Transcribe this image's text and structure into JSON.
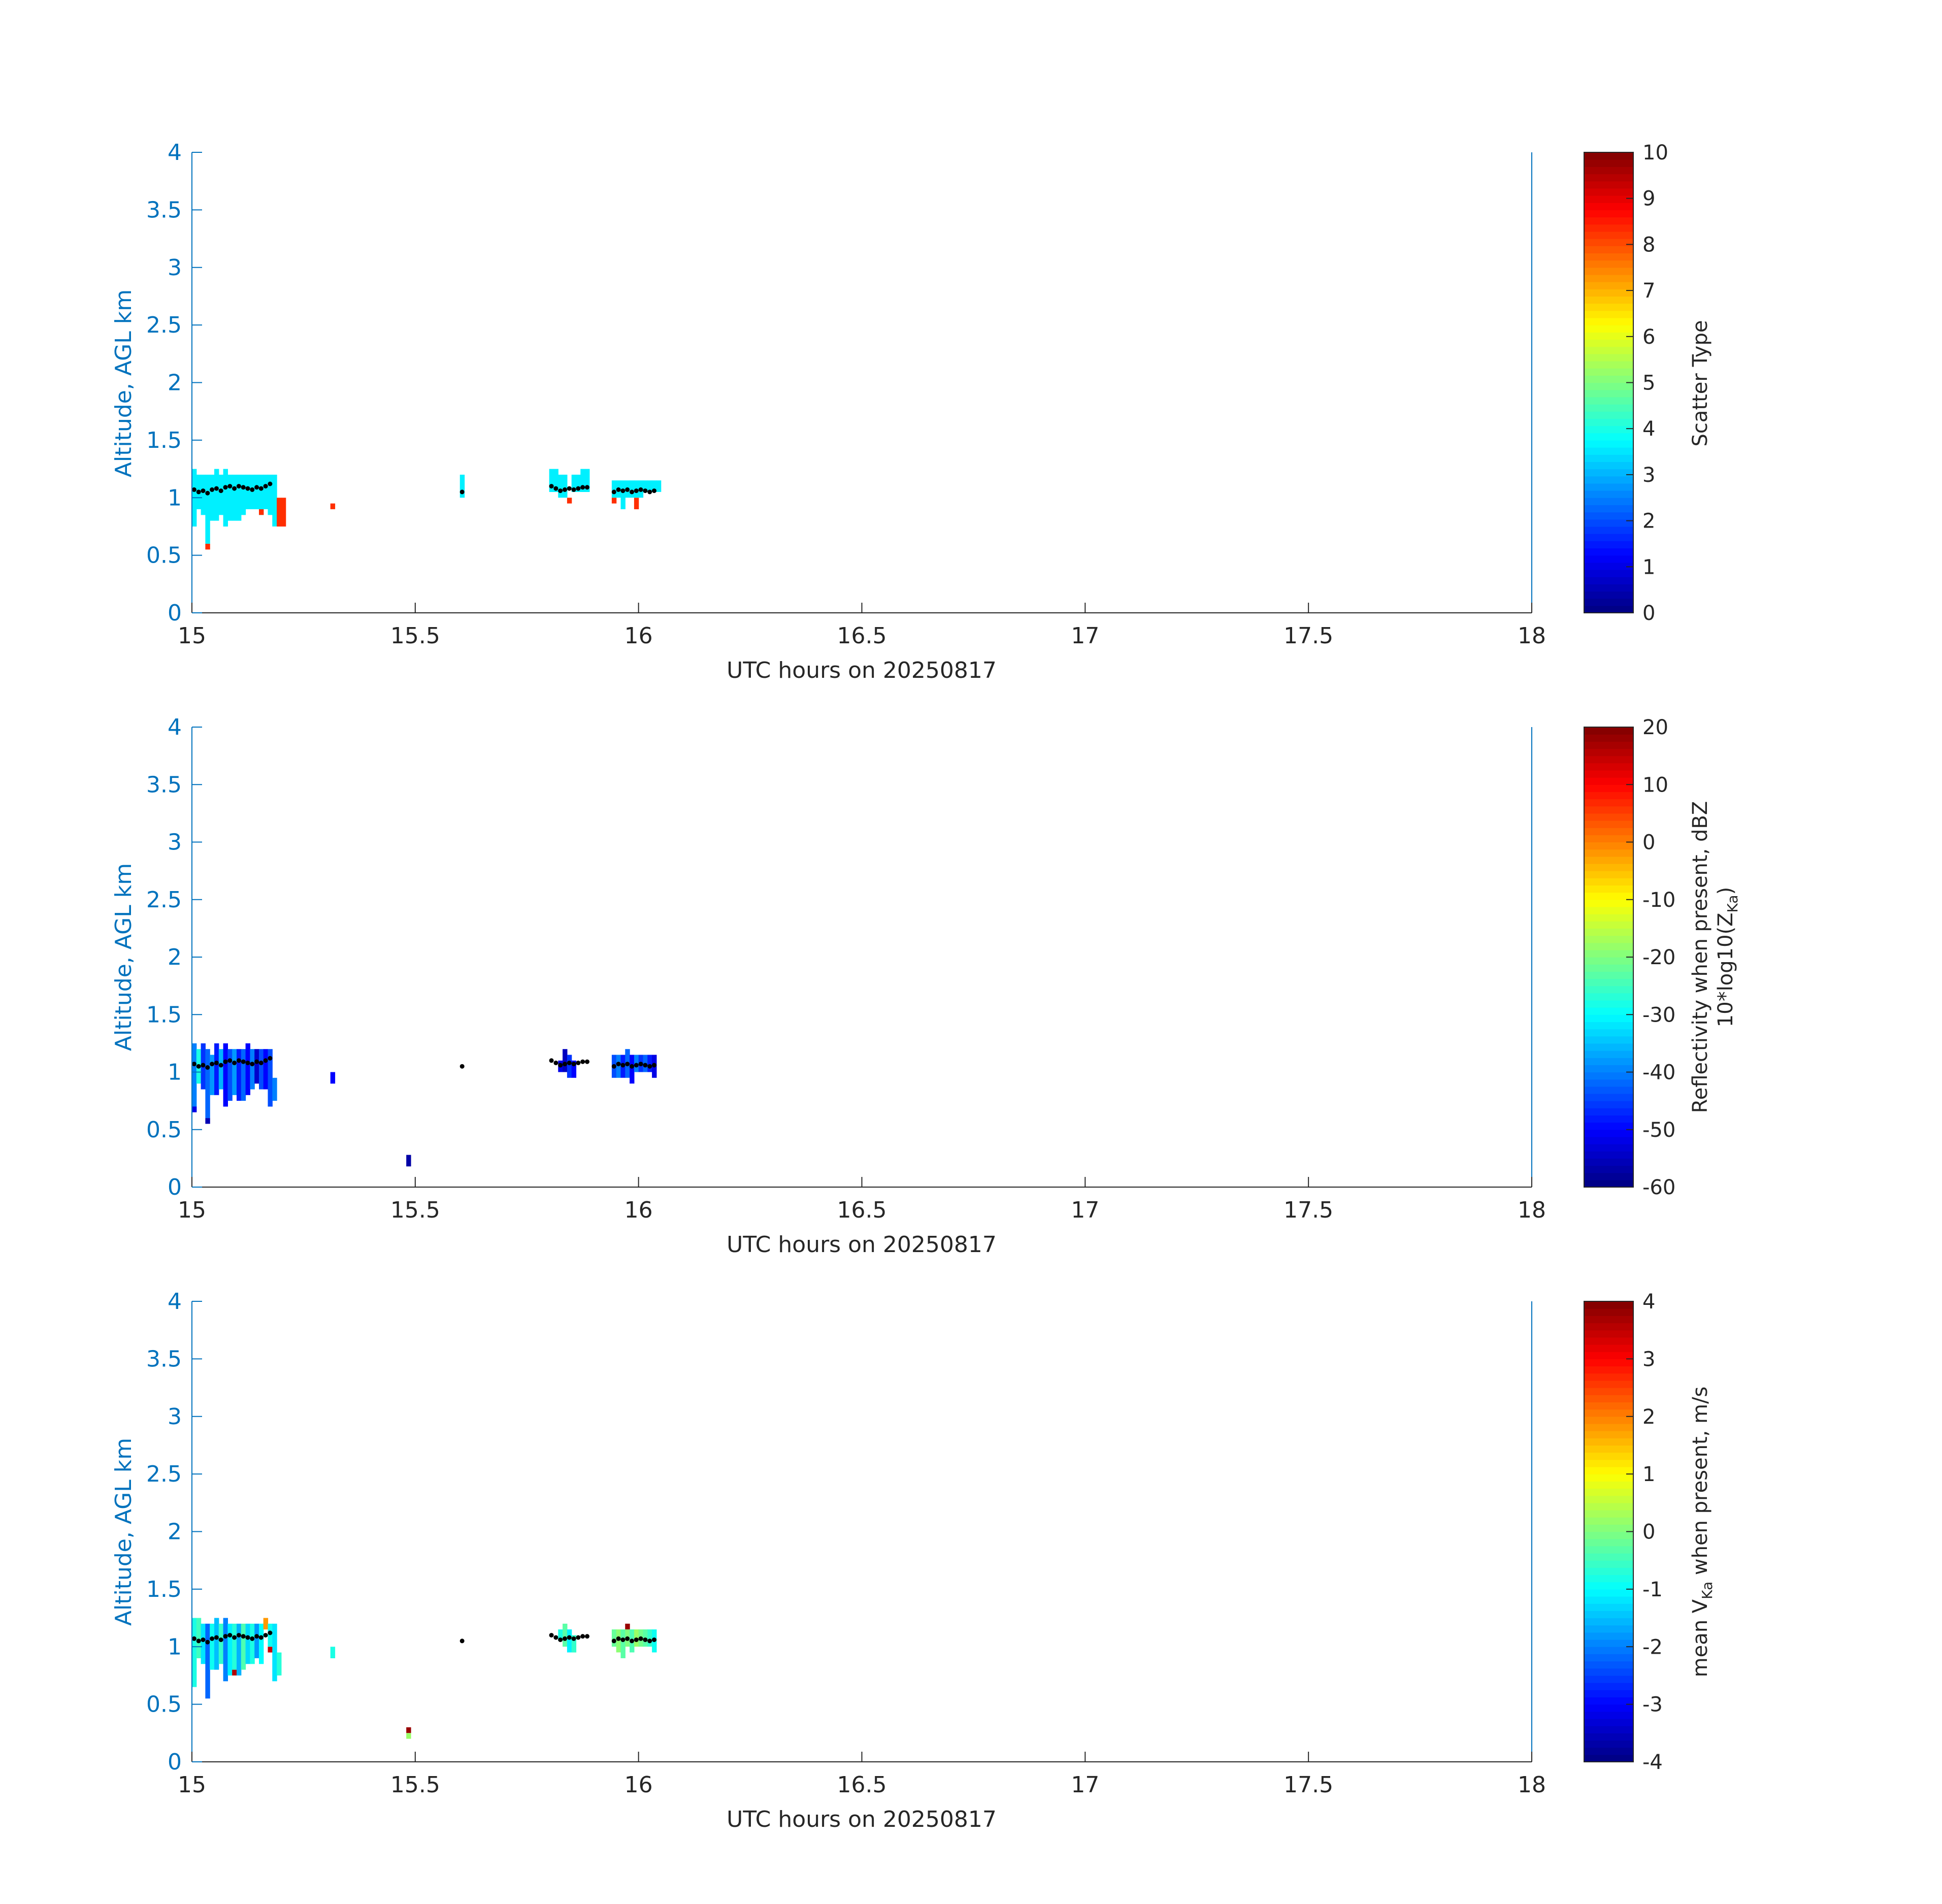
{
  "colors": {
    "yaxis": "#0072BD",
    "xaxis": "#262626",
    "box": "#0072BD",
    "cloud_base_marker": "#000000",
    "colormap": "jet"
  },
  "chart_data": [
    {
      "type": "heatmap",
      "title": "",
      "xlabel": "UTC hours on 20250817",
      "ylabel": "Altitude, AGL km",
      "xlim": [
        15,
        18
      ],
      "ylim": [
        0,
        4
      ],
      "xticks": [
        15,
        15.5,
        16,
        16.5,
        17,
        17.5,
        18
      ],
      "yticks": [
        0,
        0.5,
        1,
        1.5,
        2,
        2.5,
        3,
        3.5,
        4
      ],
      "colorbar": {
        "label_lines": [
          "Scatter Type"
        ],
        "clim": [
          0,
          10
        ],
        "ticks": [
          0,
          1,
          2,
          3,
          4,
          5,
          6,
          7,
          8,
          9,
          10
        ]
      },
      "cells": [
        {
          "x": 15.0,
          "y0": 0.75,
          "y1": 1.25,
          "value": 3.6
        },
        {
          "x": 15.01,
          "y0": 0.9,
          "y1": 1.2,
          "value": 3.6
        },
        {
          "x": 15.02,
          "y0": 0.85,
          "y1": 1.2,
          "value": 3.6
        },
        {
          "x": 15.03,
          "y0": 0.6,
          "y1": 1.2,
          "value": 3.6
        },
        {
          "x": 15.03,
          "y0": 0.55,
          "y1": 0.6,
          "value": 8.3
        },
        {
          "x": 15.04,
          "y0": 0.8,
          "y1": 1.2,
          "value": 3.6
        },
        {
          "x": 15.05,
          "y0": 0.8,
          "y1": 1.25,
          "value": 3.6
        },
        {
          "x": 15.06,
          "y0": 0.85,
          "y1": 1.2,
          "value": 3.6
        },
        {
          "x": 15.07,
          "y0": 0.75,
          "y1": 1.25,
          "value": 3.6
        },
        {
          "x": 15.08,
          "y0": 0.8,
          "y1": 1.2,
          "value": 3.6
        },
        {
          "x": 15.09,
          "y0": 0.8,
          "y1": 1.2,
          "value": 3.6
        },
        {
          "x": 15.1,
          "y0": 0.8,
          "y1": 1.2,
          "value": 3.6
        },
        {
          "x": 15.11,
          "y0": 0.85,
          "y1": 1.2,
          "value": 3.6
        },
        {
          "x": 15.12,
          "y0": 0.9,
          "y1": 1.2,
          "value": 3.6
        },
        {
          "x": 15.13,
          "y0": 0.9,
          "y1": 1.2,
          "value": 3.6
        },
        {
          "x": 15.14,
          "y0": 0.9,
          "y1": 1.2,
          "value": 3.6
        },
        {
          "x": 15.15,
          "y0": 0.85,
          "y1": 1.2,
          "value": 3.6
        },
        {
          "x": 15.15,
          "y0": 0.85,
          "y1": 0.9,
          "value": 8.3
        },
        {
          "x": 15.16,
          "y0": 0.9,
          "y1": 1.2,
          "value": 3.6
        },
        {
          "x": 15.17,
          "y0": 0.85,
          "y1": 1.2,
          "value": 3.6
        },
        {
          "x": 15.18,
          "y0": 0.75,
          "y1": 1.2,
          "value": 3.6
        },
        {
          "x": 15.19,
          "y0": 0.75,
          "y1": 1.0,
          "value": 8.3
        },
        {
          "x": 15.2,
          "y0": 0.75,
          "y1": 1.0,
          "value": 8.3
        },
        {
          "x": 15.31,
          "y0": 0.9,
          "y1": 0.95,
          "value": 8.3
        },
        {
          "x": 15.6,
          "y0": 1.0,
          "y1": 1.2,
          "value": 3.6
        },
        {
          "x": 15.8,
          "y0": 1.05,
          "y1": 1.25,
          "value": 3.6
        },
        {
          "x": 15.81,
          "y0": 1.05,
          "y1": 1.25,
          "value": 3.6
        },
        {
          "x": 15.82,
          "y0": 1.0,
          "y1": 1.2,
          "value": 3.6
        },
        {
          "x": 15.83,
          "y0": 1.0,
          "y1": 1.2,
          "value": 3.6
        },
        {
          "x": 15.84,
          "y0": 0.95,
          "y1": 1.0,
          "value": 8.3
        },
        {
          "x": 15.85,
          "y0": 1.05,
          "y1": 1.2,
          "value": 3.6
        },
        {
          "x": 15.86,
          "y0": 1.05,
          "y1": 1.2,
          "value": 3.6
        },
        {
          "x": 15.87,
          "y0": 1.05,
          "y1": 1.25,
          "value": 3.6
        },
        {
          "x": 15.88,
          "y0": 1.05,
          "y1": 1.25,
          "value": 3.6
        },
        {
          "x": 15.94,
          "y0": 1.0,
          "y1": 1.15,
          "value": 3.6
        },
        {
          "x": 15.94,
          "y0": 0.95,
          "y1": 1.0,
          "value": 8.3
        },
        {
          "x": 15.95,
          "y0": 1.0,
          "y1": 1.15,
          "value": 3.6
        },
        {
          "x": 15.96,
          "y0": 0.9,
          "y1": 1.15,
          "value": 3.6
        },
        {
          "x": 15.97,
          "y0": 1.0,
          "y1": 1.15,
          "value": 3.6
        },
        {
          "x": 15.98,
          "y0": 1.0,
          "y1": 1.15,
          "value": 3.6
        },
        {
          "x": 15.99,
          "y0": 0.9,
          "y1": 1.0,
          "value": 8.3
        },
        {
          "x": 15.99,
          "y0": 1.0,
          "y1": 1.15,
          "value": 3.6
        },
        {
          "x": 16.0,
          "y0": 1.0,
          "y1": 1.15,
          "value": 3.6
        },
        {
          "x": 16.01,
          "y0": 1.05,
          "y1": 1.15,
          "value": 3.6
        },
        {
          "x": 16.02,
          "y0": 1.05,
          "y1": 1.15,
          "value": 3.6
        },
        {
          "x": 16.03,
          "y0": 1.05,
          "y1": 1.15,
          "value": 3.6
        },
        {
          "x": 16.04,
          "y0": 1.05,
          "y1": 1.15,
          "value": 3.6
        }
      ]
    },
    {
      "type": "heatmap",
      "title": "",
      "xlabel": "UTC hours on 20250817",
      "ylabel": "Altitude, AGL km",
      "xlim": [
        15,
        18
      ],
      "ylim": [
        0,
        4
      ],
      "xticks": [
        15,
        15.5,
        16,
        16.5,
        17,
        17.5,
        18
      ],
      "yticks": [
        0,
        0.5,
        1,
        1.5,
        2,
        2.5,
        3,
        3.5,
        4
      ],
      "colorbar": {
        "label_lines": [
          "Reflectivity when present, dBZ",
          "10*log10(Z_Ka)"
        ],
        "clim": [
          -60,
          20
        ],
        "ticks": [
          -60,
          -50,
          -40,
          -30,
          -20,
          -10,
          0,
          10,
          20
        ]
      },
      "cells": [
        {
          "x": 15.0,
          "y0": 0.7,
          "y1": 1.25,
          "value": -40
        },
        {
          "x": 15.0,
          "y0": 0.65,
          "y1": 0.7,
          "value": -52
        },
        {
          "x": 15.01,
          "y0": 0.9,
          "y1": 1.2,
          "value": -28
        },
        {
          "x": 15.02,
          "y0": 0.85,
          "y1": 1.25,
          "value": -46
        },
        {
          "x": 15.03,
          "y0": 0.6,
          "y1": 1.2,
          "value": -42
        },
        {
          "x": 15.03,
          "y0": 0.55,
          "y1": 0.6,
          "value": -56
        },
        {
          "x": 15.04,
          "y0": 0.8,
          "y1": 1.15,
          "value": -38
        },
        {
          "x": 15.05,
          "y0": 0.8,
          "y1": 1.25,
          "value": -48
        },
        {
          "x": 15.06,
          "y0": 0.85,
          "y1": 1.2,
          "value": -36
        },
        {
          "x": 15.07,
          "y0": 0.7,
          "y1": 1.25,
          "value": -50
        },
        {
          "x": 15.08,
          "y0": 0.75,
          "y1": 1.2,
          "value": -44
        },
        {
          "x": 15.09,
          "y0": 0.8,
          "y1": 1.2,
          "value": -38
        },
        {
          "x": 15.1,
          "y0": 0.75,
          "y1": 1.2,
          "value": -48
        },
        {
          "x": 15.11,
          "y0": 0.75,
          "y1": 1.2,
          "value": -42
        },
        {
          "x": 15.12,
          "y0": 0.8,
          "y1": 1.25,
          "value": -50
        },
        {
          "x": 15.13,
          "y0": 0.85,
          "y1": 1.2,
          "value": -40
        },
        {
          "x": 15.14,
          "y0": 0.9,
          "y1": 1.2,
          "value": -54
        },
        {
          "x": 15.15,
          "y0": 0.85,
          "y1": 1.2,
          "value": -44
        },
        {
          "x": 15.16,
          "y0": 0.85,
          "y1": 1.2,
          "value": -50
        },
        {
          "x": 15.17,
          "y0": 0.7,
          "y1": 1.2,
          "value": -44
        },
        {
          "x": 15.18,
          "y0": 0.75,
          "y1": 0.95,
          "value": -40
        },
        {
          "x": 15.31,
          "y0": 0.9,
          "y1": 1.0,
          "value": -50
        },
        {
          "x": 15.48,
          "y0": 0.18,
          "y1": 0.28,
          "value": -57
        },
        {
          "x": 15.82,
          "y0": 1.0,
          "y1": 1.1,
          "value": -52
        },
        {
          "x": 15.83,
          "y0": 1.0,
          "y1": 1.2,
          "value": -55
        },
        {
          "x": 15.84,
          "y0": 0.95,
          "y1": 1.15,
          "value": -46
        },
        {
          "x": 15.85,
          "y0": 0.95,
          "y1": 1.1,
          "value": -50
        },
        {
          "x": 15.94,
          "y0": 0.95,
          "y1": 1.15,
          "value": -44
        },
        {
          "x": 15.95,
          "y0": 0.95,
          "y1": 1.15,
          "value": -40
        },
        {
          "x": 15.96,
          "y0": 0.95,
          "y1": 1.15,
          "value": -48
        },
        {
          "x": 15.97,
          "y0": 0.95,
          "y1": 1.2,
          "value": -42
        },
        {
          "x": 15.98,
          "y0": 0.9,
          "y1": 1.15,
          "value": -50
        },
        {
          "x": 15.99,
          "y0": 1.0,
          "y1": 1.15,
          "value": -40
        },
        {
          "x": 16.0,
          "y0": 1.0,
          "y1": 1.15,
          "value": -46
        },
        {
          "x": 16.01,
          "y0": 1.0,
          "y1": 1.15,
          "value": -42
        },
        {
          "x": 16.02,
          "y0": 1.0,
          "y1": 1.15,
          "value": -48
        },
        {
          "x": 16.03,
          "y0": 0.95,
          "y1": 1.15,
          "value": -52
        }
      ]
    },
    {
      "type": "heatmap",
      "title": "",
      "xlabel": "UTC hours on 20250817",
      "ylabel": "Altitude, AGL km",
      "xlim": [
        15,
        18
      ],
      "ylim": [
        0,
        4
      ],
      "xticks": [
        15,
        15.5,
        16,
        16.5,
        17,
        17.5,
        18
      ],
      "yticks": [
        0,
        0.5,
        1,
        1.5,
        2,
        2.5,
        3,
        3.5,
        4
      ],
      "colorbar": {
        "label_lines": [
          "mean V_Ka when present, m/s"
        ],
        "clim": [
          -4,
          4
        ],
        "ticks": [
          -4,
          -3,
          -2,
          -1,
          0,
          1,
          2,
          3,
          4
        ]
      },
      "cells": [
        {
          "x": 15.0,
          "y0": 0.65,
          "y1": 1.25,
          "value": -0.8
        },
        {
          "x": 15.01,
          "y0": 0.9,
          "y1": 1.25,
          "value": -0.5
        },
        {
          "x": 15.02,
          "y0": 0.85,
          "y1": 1.2,
          "value": -1.2
        },
        {
          "x": 15.03,
          "y0": 0.55,
          "y1": 1.2,
          "value": -2.2
        },
        {
          "x": 15.04,
          "y0": 0.8,
          "y1": 1.2,
          "value": -0.9
        },
        {
          "x": 15.05,
          "y0": 0.8,
          "y1": 1.25,
          "value": -1.5
        },
        {
          "x": 15.06,
          "y0": 0.85,
          "y1": 1.2,
          "value": -0.6
        },
        {
          "x": 15.07,
          "y0": 0.7,
          "y1": 1.25,
          "value": -2.0
        },
        {
          "x": 15.08,
          "y0": 0.75,
          "y1": 1.2,
          "value": -1.1
        },
        {
          "x": 15.09,
          "y0": 0.75,
          "y1": 0.8,
          "value": 3.6
        },
        {
          "x": 15.09,
          "y0": 0.8,
          "y1": 1.2,
          "value": -0.7
        },
        {
          "x": 15.1,
          "y0": 0.75,
          "y1": 1.2,
          "value": -1.6
        },
        {
          "x": 15.11,
          "y0": 0.8,
          "y1": 1.2,
          "value": -0.4
        },
        {
          "x": 15.12,
          "y0": 0.85,
          "y1": 1.2,
          "value": -1.3
        },
        {
          "x": 15.13,
          "y0": 0.85,
          "y1": 1.2,
          "value": -0.8
        },
        {
          "x": 15.14,
          "y0": 0.9,
          "y1": 1.2,
          "value": -1.8
        },
        {
          "x": 15.15,
          "y0": 0.85,
          "y1": 1.2,
          "value": -1.0
        },
        {
          "x": 15.16,
          "y0": 1.15,
          "y1": 1.25,
          "value": 1.8
        },
        {
          "x": 15.17,
          "y0": 0.95,
          "y1": 1.0,
          "value": 3.4
        },
        {
          "x": 15.17,
          "y0": 1.0,
          "y1": 1.2,
          "value": -0.9
        },
        {
          "x": 15.18,
          "y0": 0.7,
          "y1": 1.2,
          "value": -1.2
        },
        {
          "x": 15.19,
          "y0": 0.75,
          "y1": 0.95,
          "value": -0.7
        },
        {
          "x": 15.31,
          "y0": 0.9,
          "y1": 1.0,
          "value": -0.8
        },
        {
          "x": 15.48,
          "y0": 0.25,
          "y1": 0.3,
          "value": 3.8
        },
        {
          "x": 15.48,
          "y0": 0.2,
          "y1": 0.25,
          "value": 0.2
        },
        {
          "x": 15.82,
          "y0": 1.05,
          "y1": 1.15,
          "value": -0.8
        },
        {
          "x": 15.83,
          "y0": 1.0,
          "y1": 1.2,
          "value": -0.3
        },
        {
          "x": 15.84,
          "y0": 0.95,
          "y1": 1.15,
          "value": -1.1
        },
        {
          "x": 15.85,
          "y0": 0.95,
          "y1": 1.1,
          "value": -0.6
        },
        {
          "x": 15.94,
          "y0": 1.0,
          "y1": 1.15,
          "value": -0.2
        },
        {
          "x": 15.95,
          "y0": 0.95,
          "y1": 1.15,
          "value": 0.1
        },
        {
          "x": 15.96,
          "y0": 0.9,
          "y1": 1.15,
          "value": -0.3
        },
        {
          "x": 15.97,
          "y0": 1.0,
          "y1": 1.15,
          "value": 0.0
        },
        {
          "x": 15.97,
          "y0": 1.15,
          "y1": 1.2,
          "value": 3.8
        },
        {
          "x": 15.98,
          "y0": 0.95,
          "y1": 1.15,
          "value": -0.4
        },
        {
          "x": 15.99,
          "y0": 1.0,
          "y1": 1.15,
          "value": 0.2
        },
        {
          "x": 16.0,
          "y0": 1.0,
          "y1": 1.15,
          "value": -0.1
        },
        {
          "x": 16.01,
          "y0": 1.0,
          "y1": 1.15,
          "value": -0.3
        },
        {
          "x": 16.02,
          "y0": 1.0,
          "y1": 1.15,
          "value": -0.6
        },
        {
          "x": 16.03,
          "y0": 0.95,
          "y1": 1.15,
          "value": -0.9
        }
      ]
    }
  ],
  "cloud_base": {
    "x": [
      15.005,
      15.015,
      15.025,
      15.035,
      15.045,
      15.055,
      15.065,
      15.075,
      15.085,
      15.095,
      15.105,
      15.115,
      15.125,
      15.135,
      15.145,
      15.155,
      15.165,
      15.175,
      15.605,
      15.805,
      15.815,
      15.825,
      15.835,
      15.845,
      15.855,
      15.865,
      15.875,
      15.885,
      15.945,
      15.955,
      15.965,
      15.975,
      15.985,
      15.995,
      16.005,
      16.015,
      16.025,
      16.035
    ],
    "y": [
      1.07,
      1.05,
      1.06,
      1.04,
      1.07,
      1.08,
      1.06,
      1.09,
      1.1,
      1.08,
      1.1,
      1.09,
      1.08,
      1.07,
      1.09,
      1.08,
      1.1,
      1.12,
      1.05,
      1.1,
      1.08,
      1.06,
      1.07,
      1.08,
      1.07,
      1.08,
      1.09,
      1.09,
      1.05,
      1.07,
      1.06,
      1.07,
      1.05,
      1.06,
      1.07,
      1.06,
      1.05,
      1.06
    ]
  }
}
